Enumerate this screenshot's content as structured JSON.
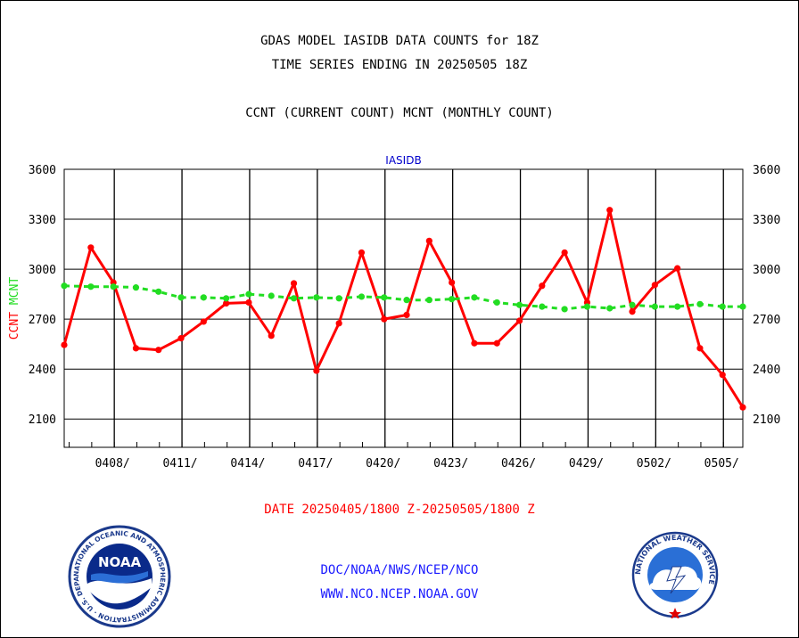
{
  "titles": {
    "line1": "GDAS MODEL IASIDB DATA COUNTS for 18Z",
    "line2": "TIME SERIES ENDING IN 20250505 18Z",
    "line3": "CCNT (CURRENT COUNT) MCNT (MONTHLY COUNT)"
  },
  "date_range": "DATE 20250405/1800 Z-20250505/1800 Z",
  "footer": {
    "org": "DOC/NOAA/NWS/NCEP/NCO",
    "url": "WWW.NCO.NCEP.NOAA.GOV"
  },
  "logos": {
    "left": "noaa-logo",
    "right": "national-weather-service-logo",
    "noaa_text": "NOAA",
    "noaa_ring": "NATIONAL OCEANIC AND ATMOSPHERIC ADMINISTRATION · U.S. DEPARTMENT OF COMMERCE ·",
    "nws_ring": "NATIONAL WEATHER SERVICE"
  },
  "colors": {
    "ccnt": "#ff0000",
    "mcnt": "#22dd22",
    "axis_title": "#0000cc"
  },
  "chart_data": {
    "type": "line",
    "title": "IASIDB",
    "ylabel_left": [
      "CCNT",
      "MCNT"
    ],
    "ylim": [
      1930,
      3600
    ],
    "yticks": [
      2100,
      2400,
      2700,
      3000,
      3300,
      3600
    ],
    "xlim": [
      4.78,
      34.86
    ],
    "x_note": "day index where 1 = 0405",
    "xticks": [
      {
        "x": 7,
        "label": "0408/"
      },
      {
        "x": 10,
        "label": "0411/"
      },
      {
        "x": 13,
        "label": "0414/"
      },
      {
        "x": 16,
        "label": "0417/"
      },
      {
        "x": 19,
        "label": "0420/"
      },
      {
        "x": 22,
        "label": "0423/"
      },
      {
        "x": 25,
        "label": "0426/"
      },
      {
        "x": 28,
        "label": "0429/"
      },
      {
        "x": 31,
        "label": "0502/"
      },
      {
        "x": 34,
        "label": "0505/"
      }
    ],
    "series": [
      {
        "name": "CCNT",
        "color": "#ff0000",
        "x": [
          4.78,
          5.96,
          6.96,
          7.96,
          8.96,
          9.96,
          10.96,
          11.96,
          12.96,
          13.96,
          14.96,
          15.96,
          16.96,
          17.96,
          18.96,
          19.96,
          20.96,
          21.96,
          22.96,
          23.96,
          24.96,
          25.96,
          26.96,
          27.96,
          28.96,
          29.96,
          30.96,
          31.96,
          32.96,
          33.96,
          34.86
        ],
        "y": [
          2545,
          3130,
          2920,
          2525,
          2515,
          2585,
          2685,
          2795,
          2800,
          2600,
          2915,
          2390,
          2675,
          3100,
          2700,
          2725,
          3170,
          2920,
          2555,
          2555,
          2690,
          2900,
          3100,
          2800,
          3355,
          2745,
          2905,
          3005,
          2525,
          2365,
          2170
        ]
      },
      {
        "name": "MCNT",
        "color": "#22dd22",
        "x": [
          4.78,
          5.96,
          6.96,
          7.96,
          8.96,
          9.96,
          10.96,
          11.96,
          12.96,
          13.96,
          14.96,
          15.96,
          16.96,
          17.96,
          18.96,
          19.96,
          20.96,
          21.96,
          22.96,
          23.96,
          24.96,
          25.96,
          26.96,
          27.96,
          28.96,
          29.96,
          30.96,
          31.96,
          32.96,
          33.96,
          34.86
        ],
        "y": [
          2900,
          2895,
          2895,
          2890,
          2865,
          2830,
          2830,
          2825,
          2850,
          2840,
          2825,
          2830,
          2825,
          2835,
          2830,
          2815,
          2815,
          2820,
          2830,
          2800,
          2785,
          2775,
          2760,
          2775,
          2765,
          2785,
          2775,
          2775,
          2790,
          2775,
          2775
        ]
      }
    ]
  }
}
